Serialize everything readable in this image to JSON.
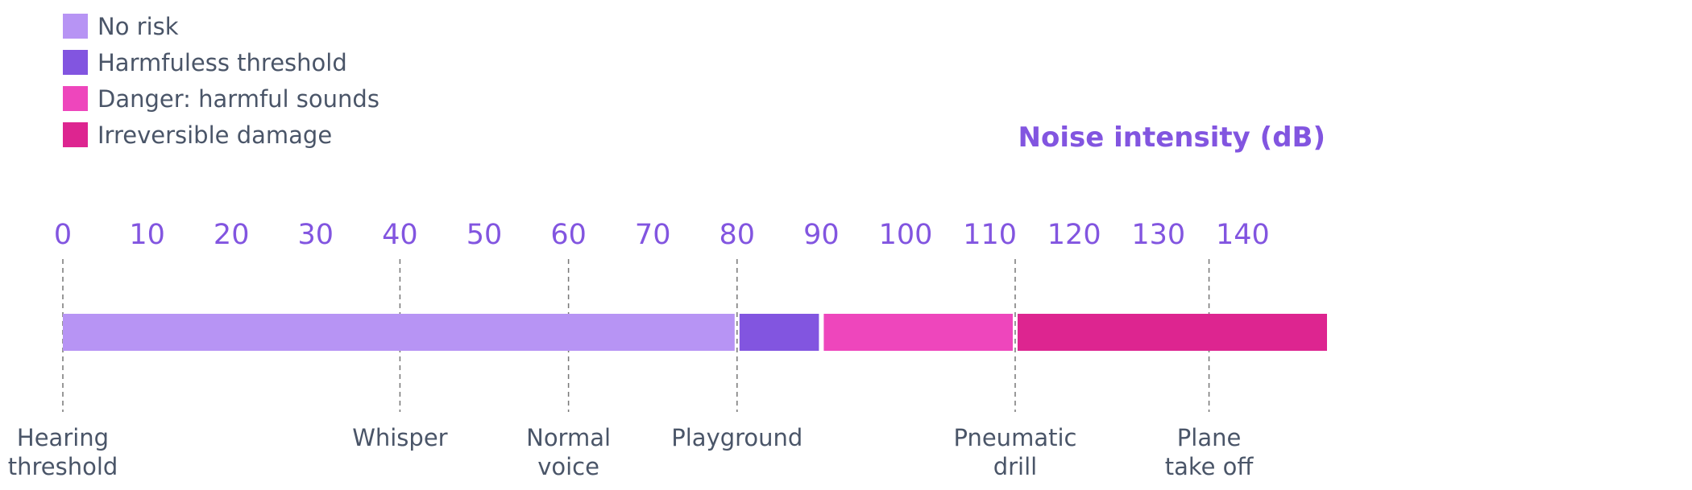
{
  "chart_data": {
    "type": "bar",
    "axis_title": "Noise intensity (dB)",
    "xlim": [
      0,
      150
    ],
    "ticks": [
      0,
      10,
      20,
      30,
      40,
      50,
      60,
      70,
      80,
      90,
      100,
      110,
      120,
      130,
      140
    ],
    "legend_position": "top-left",
    "series": [
      {
        "name": "No risk",
        "from": 0,
        "to": 80,
        "color": "#b794f4"
      },
      {
        "name": "Harmfuless threshold",
        "from": 80,
        "to": 90,
        "color": "#8255e0"
      },
      {
        "name": "Danger: harmful sounds",
        "from": 90,
        "to": 113,
        "color": "#ee46bc"
      },
      {
        "name": "Irreversible damage",
        "from": 113,
        "to": 150,
        "color": "#dd2590"
      }
    ],
    "markers": [
      {
        "value": 0,
        "lines": [
          "Hearing",
          "threshold"
        ]
      },
      {
        "value": 40,
        "lines": [
          "Whisper"
        ]
      },
      {
        "value": 60,
        "lines": [
          "Normal",
          "voice"
        ]
      },
      {
        "value": 80,
        "lines": [
          "Playground"
        ]
      },
      {
        "value": 113,
        "lines": [
          "Pneumatic",
          "drill"
        ]
      },
      {
        "value": 136,
        "lines": [
          "Plane",
          "take off"
        ]
      }
    ]
  }
}
